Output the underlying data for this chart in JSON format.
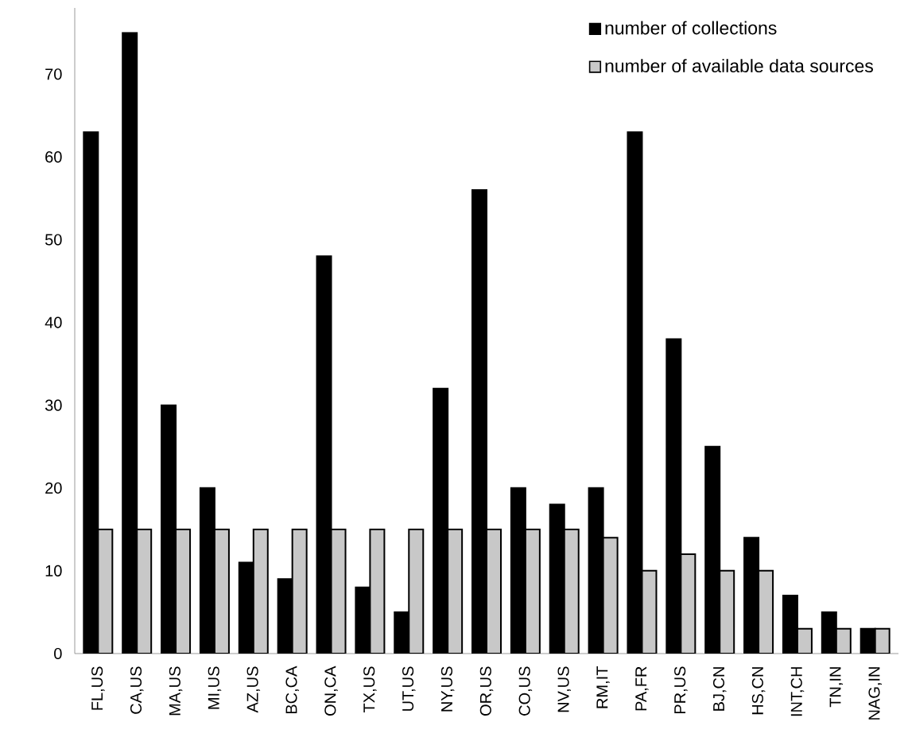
{
  "chart_data": {
    "type": "bar",
    "categories": [
      "FL,US",
      "CA,US",
      "MA,US",
      "MI,US",
      "AZ,US",
      "BC,CA",
      "ON,CA",
      "TX,US",
      "UT,US",
      "NY,US",
      "OR,US",
      "CO,US",
      "NV,US",
      "RM,IT",
      "PA,FR",
      "PR,US",
      "BJ,CN",
      "HS,CN",
      "INT,CH",
      "TN,IN",
      "NAG,IN"
    ],
    "series": [
      {
        "name": "number of collections",
        "color": "#000000",
        "values": [
          63,
          75,
          30,
          20,
          11,
          9,
          48,
          8,
          5,
          32,
          56,
          20,
          18,
          20,
          63,
          38,
          25,
          14,
          7,
          5,
          3
        ]
      },
      {
        "name": "number of available data sources",
        "color": "#c8c8c8",
        "values": [
          15,
          15,
          15,
          15,
          15,
          15,
          15,
          15,
          15,
          15,
          15,
          15,
          15,
          14,
          10,
          12,
          10,
          10,
          3,
          3,
          3
        ]
      }
    ],
    "ylim": [
      0,
      78
    ],
    "yticks": [
      0,
      10,
      20,
      30,
      40,
      50,
      60,
      70
    ],
    "grid": false,
    "legend": "top right"
  }
}
